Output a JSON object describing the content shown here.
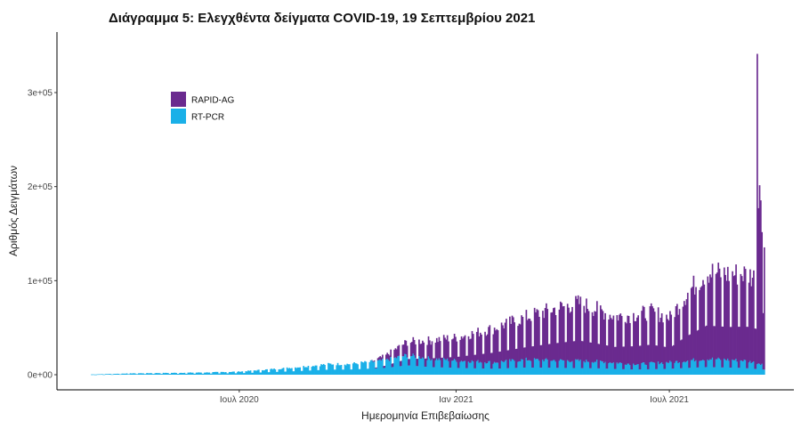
{
  "chart_data": {
    "type": "bar",
    "stacked": true,
    "title": "Διάγραμμα 5: Ελεγχθέντα δείγματα COVID-19, 19 Σεπτεμβρίου 2021",
    "xlabel": "Ημερομηνία Επιβεβαίωσης",
    "ylabel": "Αριθμός Δειγμάτων",
    "x_range": [
      "2020-02-26",
      "2021-09-19"
    ],
    "ylim": [
      0,
      360000
    ],
    "y_ticks": [
      0,
      100000,
      200000,
      300000
    ],
    "y_tick_labels": [
      "0e+00",
      "1e+05",
      "2e+05",
      "3e+05"
    ],
    "x_ticks": [
      "2020-07-01",
      "2021-01-01",
      "2021-07-01"
    ],
    "x_tick_labels": [
      "Ιουλ 2020",
      "Ιαν 2021",
      "Ιουλ 2021"
    ],
    "legend_position": "top-left",
    "grid": false,
    "colors": {
      "RAPID-AG": "#6a2a8f",
      "RT-PCR": "#1ab0e8"
    },
    "series": [
      {
        "name": "RAPID-AG",
        "color": "#6a2a8f",
        "control_points": [
          [
            "2020-02-26",
            0
          ],
          [
            "2020-10-20",
            0
          ],
          [
            "2020-11-01",
            5000
          ],
          [
            "2020-11-20",
            15000
          ],
          [
            "2020-12-15",
            22000
          ],
          [
            "2021-01-01",
            26000
          ],
          [
            "2021-02-01",
            38000
          ],
          [
            "2021-03-01",
            48000
          ],
          [
            "2021-03-25",
            58000
          ],
          [
            "2021-04-15",
            65000
          ],
          [
            "2021-05-15",
            52000
          ],
          [
            "2021-06-15",
            58000
          ],
          [
            "2021-07-01",
            50000
          ],
          [
            "2021-07-15",
            75000
          ],
          [
            "2021-08-01",
            98000
          ],
          [
            "2021-08-20",
            96000
          ],
          [
            "2021-09-05",
            98000
          ],
          [
            "2021-09-12",
            95000
          ],
          [
            "2021-09-19",
            140000
          ]
        ],
        "spikes": [
          [
            "2021-09-13",
            330000
          ],
          [
            "2021-09-14",
            165000
          ],
          [
            "2021-09-15",
            190000
          ],
          [
            "2021-09-16",
            175000
          ],
          [
            "2021-09-17",
            140000
          ],
          [
            "2021-09-18",
            60000
          ],
          [
            "2021-09-19",
            130000
          ]
        ]
      },
      {
        "name": "RT-PCR",
        "color": "#1ab0e8",
        "control_points": [
          [
            "2020-02-26",
            300
          ],
          [
            "2020-04-01",
            1500
          ],
          [
            "2020-06-01",
            2500
          ],
          [
            "2020-07-01",
            3500
          ],
          [
            "2020-08-15",
            8000
          ],
          [
            "2020-09-15",
            12000
          ],
          [
            "2020-10-01",
            12000
          ],
          [
            "2020-11-01",
            16000
          ],
          [
            "2020-11-20",
            22000
          ],
          [
            "2020-12-10",
            18000
          ],
          [
            "2021-01-01",
            16000
          ],
          [
            "2021-02-01",
            14000
          ],
          [
            "2021-03-01",
            17000
          ],
          [
            "2021-04-01",
            16000
          ],
          [
            "2021-05-01",
            15000
          ],
          [
            "2021-06-01",
            12000
          ],
          [
            "2021-07-01",
            14000
          ],
          [
            "2021-08-01",
            18000
          ],
          [
            "2021-09-01",
            16000
          ],
          [
            "2021-09-19",
            12000
          ]
        ]
      }
    ]
  }
}
